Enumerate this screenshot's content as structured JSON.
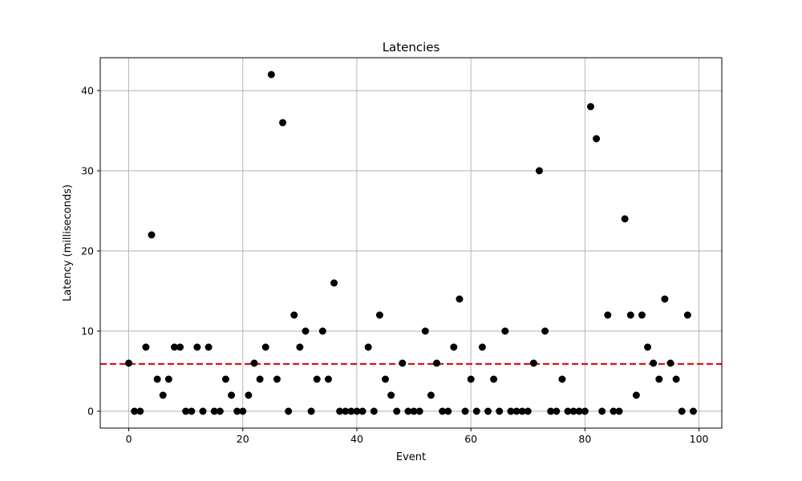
{
  "chart_data": {
    "type": "scatter",
    "title": "Latencies",
    "xlabel": "Event",
    "ylabel": "Latency (milliseconds)",
    "xlim": [
      -5,
      104
    ],
    "ylim": [
      -2.1,
      44.1
    ],
    "xticks": [
      0,
      20,
      40,
      60,
      80,
      100
    ],
    "yticks": [
      0,
      10,
      20,
      30,
      40
    ],
    "grid": true,
    "point_color": "#000000",
    "series": [
      {
        "x": [
          0,
          1,
          2,
          3,
          4,
          5,
          6,
          7,
          8,
          9,
          10,
          11,
          12,
          13,
          14,
          15,
          16,
          17,
          18,
          19,
          20,
          21,
          22,
          23,
          24,
          25,
          26,
          27,
          28,
          29,
          30,
          31,
          32,
          33,
          34,
          35,
          36,
          37,
          38,
          39,
          40,
          41,
          42,
          43,
          44,
          45,
          46,
          47,
          48,
          49,
          50,
          51,
          52,
          53,
          54,
          55,
          56,
          57,
          58,
          59,
          60,
          61,
          62,
          63,
          64,
          65,
          66,
          67,
          68,
          69,
          70,
          71,
          72,
          73,
          74,
          75,
          76,
          77,
          78,
          79,
          80,
          81,
          82,
          83,
          84,
          85,
          86,
          87,
          88,
          89,
          90,
          91,
          92,
          93,
          94,
          95,
          96,
          97,
          98,
          99
        ],
        "y": [
          6,
          0,
          0,
          8,
          22,
          4,
          2,
          4,
          8,
          8,
          0,
          0,
          8,
          0,
          8,
          0,
          0,
          4,
          2,
          0,
          0,
          2,
          6,
          4,
          8,
          42,
          4,
          36,
          0,
          12,
          8,
          10,
          0,
          4,
          10,
          4,
          16,
          0,
          0,
          0,
          0,
          0,
          8,
          0,
          12,
          4,
          2,
          0,
          6,
          0,
          0,
          0,
          10,
          2,
          6,
          0,
          0,
          8,
          14,
          0,
          4,
          0,
          8,
          0,
          4,
          0,
          10,
          0,
          0,
          0,
          0,
          6,
          30,
          10,
          0,
          0,
          4,
          0,
          0,
          0,
          0,
          38,
          34,
          0,
          12,
          0,
          0,
          24,
          12,
          2,
          12,
          8,
          6,
          4,
          14,
          6,
          4,
          0,
          12,
          0
        ]
      }
    ],
    "reference_line": {
      "y": 5.9,
      "color": "#dd1111",
      "style": "dashed"
    }
  }
}
